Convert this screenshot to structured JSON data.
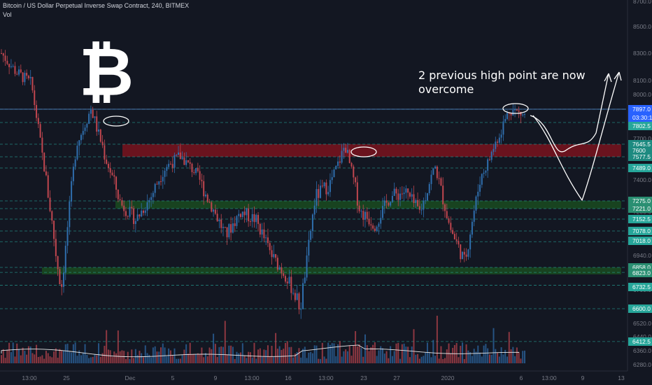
{
  "header": {
    "symbol": "Bitcoin / US Dollar Perpetual Inverse Swap Contract, 240, BITMEX",
    "volume_label": "Vol"
  },
  "annotation": "2 previous high point are now overcome",
  "logo": "bitcoin-logo",
  "colors": {
    "background": "#131722",
    "up": "#2f6ead",
    "down": "#c0464f",
    "level_line": "#26a69a",
    "resistance_zone": "#b2101c",
    "support_zone": "#1f7a1f",
    "current_price_tag": "#2962ff",
    "axis_text": "#787b86"
  },
  "chart_data": {
    "type": "candlestick",
    "title": "Bitcoin / US Dollar Perpetual Inverse Swap Contract, 240, BITMEX",
    "timeframe": "240",
    "exchange": "BITMEX",
    "ylim": [
      6230,
      8700
    ],
    "y_ticks": [
      8700.0,
      8500.0,
      8300.0,
      8100.0,
      8000.0,
      7700.0,
      7400.0,
      7200.0,
      6940.0,
      6700.0,
      6520.0,
      6440.0,
      6360.0,
      6280.0
    ],
    "x_ticks": [
      "13:00",
      "25",
      "Dec",
      "5",
      "9",
      "13:00",
      "16",
      "13:00",
      "23",
      "27",
      "2020",
      "6",
      "13:00",
      "9",
      "13",
      "13:00"
    ],
    "levels": [
      7897.0,
      7802.5,
      7645.5,
      7577.5,
      7489.0,
      7275.0,
      7221.0,
      7152.5,
      7078.0,
      7018.0,
      6858.0,
      6823.0,
      6732.5,
      6600.0,
      6412.5
    ],
    "price_tags": [
      "7897.0",
      "03:30:18",
      "7802.5",
      "7645.5",
      "7600",
      "7577.5",
      "7489.0",
      "7275.0",
      "7221.0",
      "7152.5",
      "7078.0",
      "7018.0",
      "6858.0",
      "6823.0",
      "6732.5",
      "6600.0",
      "6412.5"
    ],
    "current_price": 7897.0,
    "countdown": "03:30:18",
    "zones": [
      {
        "type": "resistance",
        "low": 7577.5,
        "high": 7645.5
      },
      {
        "type": "support",
        "low": 7221.0,
        "high": 7275.0
      },
      {
        "type": "support",
        "low": 6823.0,
        "high": 6858.0
      }
    ],
    "highs_marked": [
      7902,
      7700,
      7902
    ],
    "price_path": [
      8300,
      8160,
      8080,
      7400,
      6700,
      7650,
      7900,
      7550,
      7250,
      7150,
      7300,
      7500,
      7580,
      7450,
      7250,
      7050,
      7200,
      7150,
      6950,
      6800,
      6600,
      7300,
      7380,
      7650,
      7200,
      7120,
      7300,
      7330,
      7200,
      7500,
      7100,
      6900,
      7400,
      7650,
      7900,
      7850
    ],
    "volume_note": "volume histogram with moving average line"
  }
}
